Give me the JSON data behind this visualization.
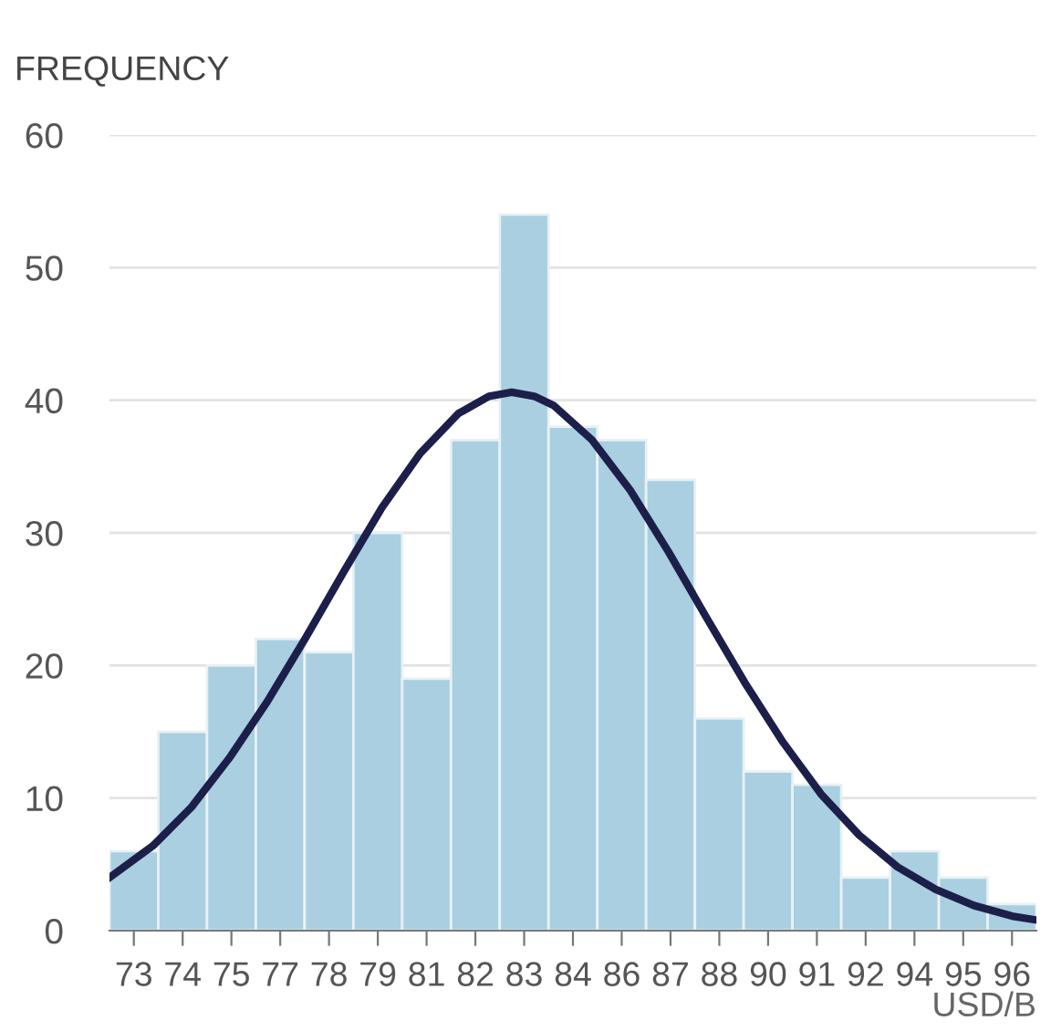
{
  "chart_data": {
    "type": "histogram",
    "ylabel": "FREQUENCY",
    "xlabel": "USD/B",
    "bins": [
      72.1,
      73.4,
      74.7,
      76.0,
      77.3,
      78.6,
      79.9,
      81.2,
      82.5,
      83.8,
      85.1,
      86.4,
      87.7,
      89.0,
      90.3,
      91.6,
      92.9,
      94.2,
      95.5,
      96.8
    ],
    "values": [
      6,
      15,
      20,
      22,
      21,
      30,
      19,
      37,
      54,
      38,
      37,
      34,
      16,
      12,
      11,
      4,
      6,
      4,
      2
    ],
    "color": "#a9cfe0",
    "series": [
      {
        "type": "line",
        "color": "#1c1f4a",
        "x": [
          72.1,
          73.26,
          74.28,
          75.29,
          76.31,
          77.33,
          78.35,
          79.36,
          80.38,
          81.4,
          82.21,
          82.82,
          83.42,
          83.94,
          84.96,
          85.98,
          86.99,
          88.01,
          89.03,
          90.05,
          91.06,
          92.08,
          93.1,
          94.12,
          95.13,
          96.15,
          96.8
        ],
        "values": [
          4.0,
          6.4,
          9.3,
          13.0,
          17.3,
          22.1,
          27.1,
          31.9,
          36.0,
          39.0,
          40.3,
          40.6,
          40.3,
          39.6,
          37.0,
          33.2,
          28.6,
          23.6,
          18.7,
          14.2,
          10.3,
          7.2,
          4.8,
          3.1,
          1.9,
          1.1,
          0.8
        ]
      }
    ],
    "xlim": [
      72.1,
      96.8
    ],
    "xticks": [
      {
        "value": 72.75,
        "label": "73"
      },
      {
        "value": 74.05,
        "label": "74"
      },
      {
        "value": 75.35,
        "label": "75"
      },
      {
        "value": 76.65,
        "label": "77"
      },
      {
        "value": 77.95,
        "label": "78"
      },
      {
        "value": 79.25,
        "label": "79"
      },
      {
        "value": 80.55,
        "label": "81"
      },
      {
        "value": 81.85,
        "label": "82"
      },
      {
        "value": 83.15,
        "label": "83"
      },
      {
        "value": 84.45,
        "label": "84"
      },
      {
        "value": 85.75,
        "label": "86"
      },
      {
        "value": 87.05,
        "label": "87"
      },
      {
        "value": 88.35,
        "label": "88"
      },
      {
        "value": 89.65,
        "label": "90"
      },
      {
        "value": 90.95,
        "label": "91"
      },
      {
        "value": 92.25,
        "label": "92"
      },
      {
        "value": 93.55,
        "label": "94"
      },
      {
        "value": 94.85,
        "label": "95"
      },
      {
        "value": 96.15,
        "label": "96"
      }
    ],
    "ylim": [
      0,
      60
    ],
    "yticks": [
      0,
      10,
      20,
      30,
      40,
      50,
      60
    ],
    "grid": "y"
  }
}
